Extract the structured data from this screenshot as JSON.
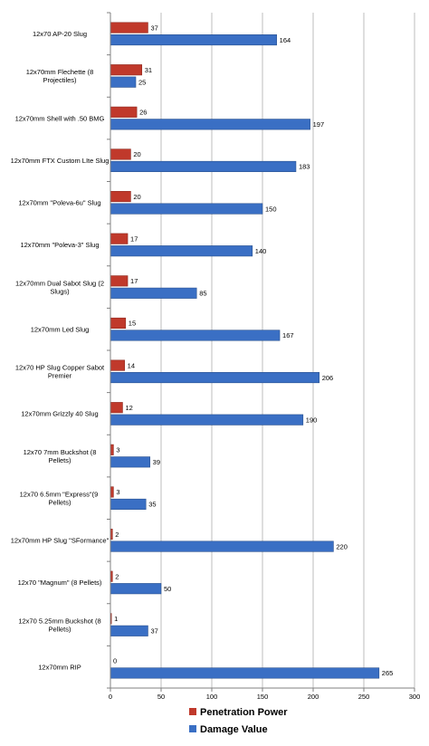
{
  "chart_data": {
    "type": "bar",
    "orientation": "horizontal",
    "categories": [
      "12x70 AP-20 Slug",
      "12x70mm Flechette (8 Projectiles)",
      "12x70mm Shell with .50 BMG",
      "12x70mm FTX Custom LIte Slug",
      "12x70mm \"Poleva-6u\" Slug",
      "12x70mm \"Poleva-3\" Slug",
      "12x70mm Dual Sabot Slug (2 Slugs)",
      "12x70mm Led Slug",
      "12x70 HP Slug Copper Sabot Premier",
      "12x70mm Grizzly 40 Slug",
      "12x70 7mm Buckshot (8 Pellets)",
      "12x70 6.5mm \"Express\"(9  Pellets)",
      "12x70mm HP Slug \"SFormance\"",
      "12x70 \"Magnum\" (8 Pellets)",
      "12x70 5.25mm Buckshot (8 Pellets)",
      "12x70mm RIP"
    ],
    "series": [
      {
        "name": "Penetration Power",
        "color": "#C0392B",
        "values": [
          37,
          31,
          26,
          20,
          20,
          17,
          17,
          15,
          14,
          12,
          3,
          3,
          2,
          2,
          1,
          0
        ]
      },
      {
        "name": "Damage Value",
        "color": "#3A6FC4",
        "values": [
          164,
          25,
          197,
          183,
          150,
          140,
          85,
          167,
          206,
          190,
          39,
          35,
          220,
          50,
          37,
          265
        ]
      }
    ],
    "xlim": [
      0,
      300
    ],
    "xticks": [
      "0",
      "50",
      "100",
      "150",
      "200",
      "250",
      "300"
    ],
    "grid": true,
    "legend_position": "bottom"
  }
}
